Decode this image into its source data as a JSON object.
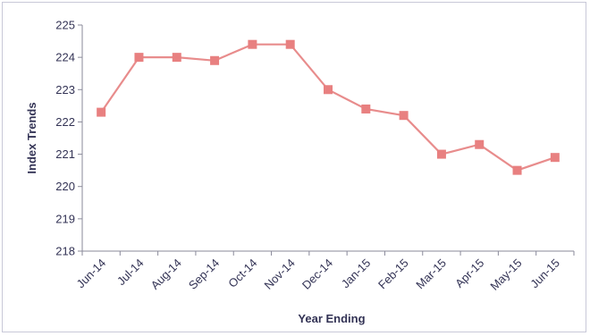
{
  "chart_data": {
    "type": "line",
    "title": "",
    "xlabel": "Year Ending",
    "ylabel": "Index Trends",
    "categories": [
      "Jun-14",
      "Jul-14",
      "Aug-14",
      "Sep-14",
      "Oct-14",
      "Nov-14",
      "Dec-14",
      "Jan-15",
      "Feb-15",
      "Mar-15",
      "Apr-15",
      "May-15",
      "Jun-15"
    ],
    "series": [
      {
        "values": [
          222.3,
          224.0,
          224.0,
          223.9,
          224.4,
          224.4,
          223.0,
          222.4,
          222.2,
          221.0,
          221.3,
          220.5,
          220.9
        ]
      }
    ],
    "ylim": [
      218,
      225
    ],
    "yticks": [
      218,
      219,
      220,
      221,
      222,
      223,
      224,
      225
    ],
    "grid": false,
    "legend": "none",
    "line_color": "#e88c8c",
    "marker_color": "#e88080",
    "marker": "square"
  }
}
